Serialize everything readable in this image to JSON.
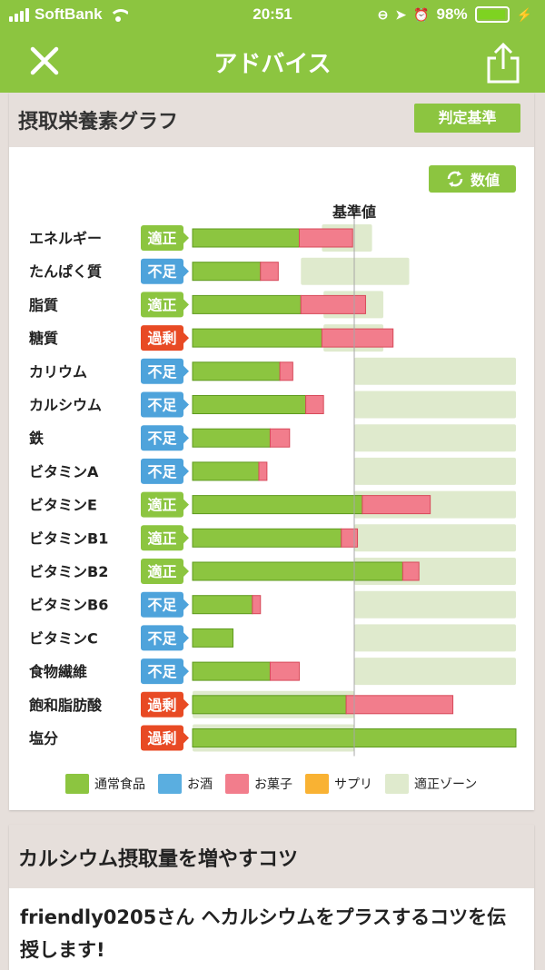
{
  "status_bar": {
    "carrier": "SoftBank",
    "time": "20:51",
    "battery": "98%",
    "battery_level": 0.98
  },
  "nav": {
    "title": "アドバイス",
    "close_icon": "close-icon",
    "share_icon": "share-icon"
  },
  "nutrition_card": {
    "title": "摂取栄養素グラフ",
    "criteria_button": "判定基準",
    "value_button": "数値",
    "reference_label": "基準値",
    "legend": [
      {
        "label": "通常食品",
        "color": "#8cc540"
      },
      {
        "label": "お酒",
        "color": "#5aaee0"
      },
      {
        "label": "お菓子",
        "color": "#f27d8c"
      },
      {
        "label": "サプリ",
        "color": "#f9b233"
      },
      {
        "label": "適正ゾーン",
        "color": "#dfeacd"
      }
    ],
    "status_colors": {
      "適正": "#8cc540",
      "不足": "#4ea3db",
      "過剰": "#e84a24"
    }
  },
  "chart_data": {
    "type": "bar",
    "orientation": "horizontal",
    "stacked": true,
    "reference": 100,
    "xlim": [
      0,
      200
    ],
    "series": [
      {
        "name": "通常食品",
        "color": "#8cc540"
      },
      {
        "name": "お菓子",
        "color": "#f27d8c"
      }
    ],
    "rows": [
      {
        "label": "エネルギー",
        "status": "適正",
        "food": 66,
        "sweets": 33,
        "zone": [
          80,
          111
        ]
      },
      {
        "label": "たんぱく質",
        "status": "不足",
        "food": 42,
        "sweets": 11,
        "zone": [
          67,
          134
        ]
      },
      {
        "label": "脂質",
        "status": "適正",
        "food": 67,
        "sweets": 40,
        "zone": [
          81,
          118
        ]
      },
      {
        "label": "糖質",
        "status": "過剰",
        "food": 80,
        "sweets": 44,
        "zone": [
          81,
          118
        ]
      },
      {
        "label": "カリウム",
        "status": "不足",
        "food": 54,
        "sweets": 8,
        "zone": [
          100,
          200
        ]
      },
      {
        "label": "カルシウム",
        "status": "不足",
        "food": 70,
        "sweets": 11,
        "zone": [
          100,
          200
        ]
      },
      {
        "label": "鉄",
        "status": "不足",
        "food": 48,
        "sweets": 12,
        "zone": [
          100,
          200
        ]
      },
      {
        "label": "ビタミンA",
        "status": "不足",
        "food": 41,
        "sweets": 5,
        "zone": [
          100,
          200
        ]
      },
      {
        "label": "ビタミンE",
        "status": "適正",
        "food": 105,
        "sweets": 42,
        "zone": [
          100,
          200
        ]
      },
      {
        "label": "ビタミンB1",
        "status": "適正",
        "food": 92,
        "sweets": 10,
        "zone": [
          100,
          200
        ]
      },
      {
        "label": "ビタミンB2",
        "status": "適正",
        "food": 130,
        "sweets": 10,
        "zone": [
          100,
          200
        ]
      },
      {
        "label": "ビタミンB6",
        "status": "不足",
        "food": 37,
        "sweets": 5,
        "zone": [
          100,
          200
        ]
      },
      {
        "label": "ビタミンC",
        "status": "不足",
        "food": 25,
        "sweets": 0,
        "zone": [
          100,
          200
        ]
      },
      {
        "label": "食物繊維",
        "status": "不足",
        "food": 48,
        "sweets": 18,
        "zone": [
          100,
          200
        ]
      },
      {
        "label": "飽和脂肪酸",
        "status": "過剰",
        "food": 95,
        "sweets": 66,
        "zone": [
          0,
          100
        ]
      },
      {
        "label": "塩分",
        "status": "過剰",
        "food": 200,
        "sweets": 0,
        "zone": [
          0,
          100
        ]
      }
    ]
  },
  "tips_card": {
    "title": "カルシウム摂取量を増やすコツ",
    "body": "friendly0205さん ヘカルシウムをプラスするコツを伝授します!"
  }
}
